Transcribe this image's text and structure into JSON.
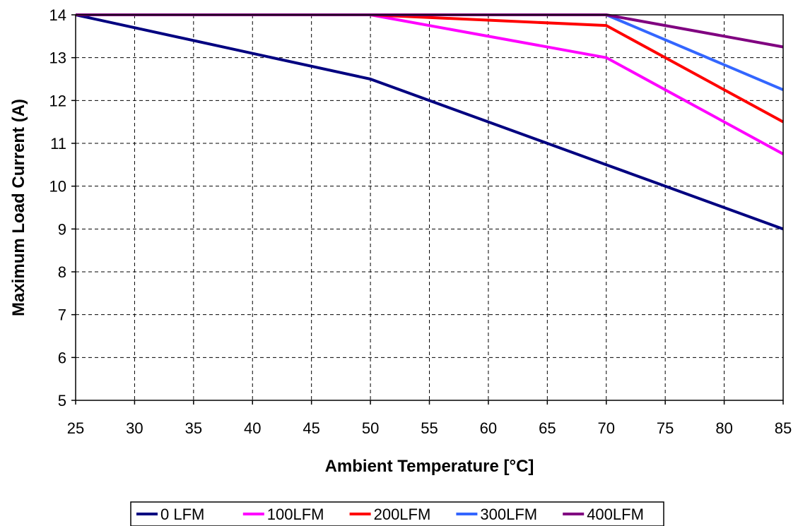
{
  "chart_data": {
    "type": "line",
    "title": "",
    "xlabel": "Ambient Temperature [°C]",
    "ylabel": "Maximum Load Current (A)",
    "xlim": [
      25,
      85
    ],
    "ylim": [
      5,
      14
    ],
    "x_ticks": [
      "25",
      "30",
      "35",
      "40",
      "45",
      "50",
      "55",
      "60",
      "65",
      "70",
      "75",
      "80",
      "85"
    ],
    "y_ticks": [
      "5",
      "6",
      "7",
      "8",
      "9",
      "10",
      "11",
      "12",
      "13",
      "14"
    ],
    "grid": true,
    "legend_position": "bottom",
    "series": [
      {
        "name": "0 LFM",
        "color": "#000080",
        "points": [
          [
            25,
            14
          ],
          [
            50,
            12.5
          ],
          [
            70,
            10.5
          ],
          [
            85,
            9
          ]
        ]
      },
      {
        "name": "100LFM",
        "color": "#ff00ff",
        "points": [
          [
            25,
            14
          ],
          [
            50,
            14
          ],
          [
            70,
            13
          ],
          [
            85,
            10.75
          ]
        ]
      },
      {
        "name": "200LFM",
        "color": "#ff0000",
        "points": [
          [
            25,
            14
          ],
          [
            50,
            14
          ],
          [
            70,
            13.75
          ],
          [
            85,
            11.5
          ]
        ]
      },
      {
        "name": "300LFM",
        "color": "#3366ff",
        "points": [
          [
            25,
            14
          ],
          [
            50,
            14
          ],
          [
            70,
            14
          ],
          [
            85,
            12.25
          ]
        ]
      },
      {
        "name": "400LFM",
        "color": "#800080",
        "points": [
          [
            25,
            14
          ],
          [
            50,
            14
          ],
          [
            70,
            14
          ],
          [
            85,
            13.25
          ]
        ]
      }
    ]
  }
}
